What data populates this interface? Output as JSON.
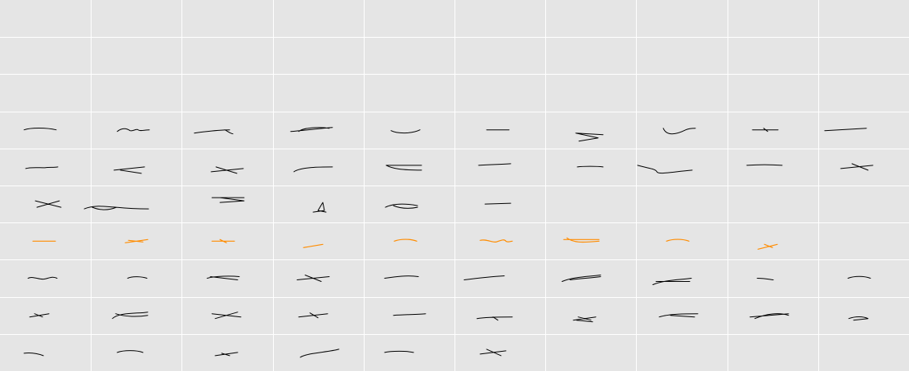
{
  "colors": {
    "background": "#e5e5e5",
    "grid": "#ffffff",
    "ink_default": "#000000",
    "ink_highlight": "#ff8c00"
  },
  "grid": {
    "columns": 10,
    "rows": 10
  },
  "highlighted_row": 6,
  "glyph_rows": [
    {
      "row": 3,
      "count": 10,
      "highlight": false
    },
    {
      "row": 4,
      "count": 10,
      "highlight": false
    },
    {
      "row": 5,
      "count": 6,
      "highlight": false
    },
    {
      "row": 6,
      "count": 9,
      "highlight": true
    },
    {
      "row": 7,
      "count": 10,
      "highlight": false
    },
    {
      "row": 8,
      "count": 10,
      "highlight": false
    },
    {
      "row": 9,
      "count": 6,
      "highlight": false
    }
  ]
}
